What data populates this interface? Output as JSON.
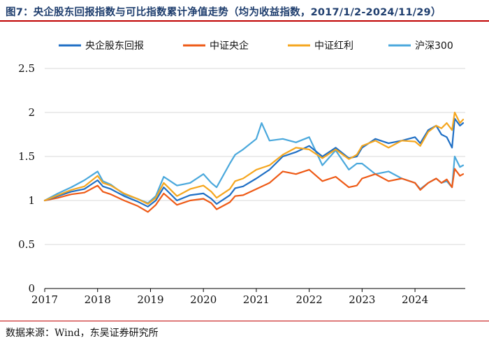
{
  "figure": {
    "title": "图7：央企股东回报指数与可比指数累计净值走势（均为收益指数，2017/1/2-2024/11/29）",
    "source": "数据来源：Wind，东吴证券研究所"
  },
  "colors": {
    "title": "#1f3e6e",
    "rule": "#c00000",
    "grid": "#d9d9d9",
    "axis": "#000000"
  },
  "chart_data": {
    "type": "line",
    "title": "央企股东回报指数与可比指数累计净值走势（均为收益指数，2017/1/2-2024/11/29）",
    "xlabel": "",
    "ylabel": "",
    "grid": true,
    "legend_position": "top",
    "xlim": [
      2017.0,
      2024.95
    ],
    "ylim": [
      0,
      2.5
    ],
    "yticks": [
      0,
      0.5,
      1,
      1.5,
      2,
      2.5
    ],
    "ytick_labels": [
      "0",
      "0.5",
      "1",
      "1.5",
      "2",
      "2.5"
    ],
    "xticks": [
      2017,
      2018,
      2019,
      2020,
      2021,
      2022,
      2023,
      2024
    ],
    "xtick_labels": [
      "2017",
      "2018",
      "2019",
      "2020",
      "2021",
      "2022",
      "2023",
      "2024"
    ],
    "series": [
      {
        "name": "央企股东回报",
        "color": "#1f6fc5",
        "x": [
          2017.0,
          2017.25,
          2017.5,
          2017.75,
          2018.0,
          2018.1,
          2018.25,
          2018.5,
          2018.75,
          2018.95,
          2019.1,
          2019.25,
          2019.5,
          2019.75,
          2020.0,
          2020.15,
          2020.25,
          2020.5,
          2020.6,
          2020.75,
          2021.0,
          2021.25,
          2021.5,
          2021.75,
          2022.0,
          2022.25,
          2022.5,
          2022.75,
          2022.9,
          2023.0,
          2023.25,
          2023.5,
          2023.75,
          2024.0,
          2024.1,
          2024.25,
          2024.4,
          2024.5,
          2024.6,
          2024.7,
          2024.75,
          2024.85,
          2024.91
        ],
        "values": [
          1.0,
          1.05,
          1.1,
          1.13,
          1.23,
          1.16,
          1.13,
          1.05,
          0.99,
          0.93,
          1.0,
          1.15,
          1.0,
          1.06,
          1.08,
          1.02,
          0.96,
          1.06,
          1.14,
          1.16,
          1.25,
          1.35,
          1.5,
          1.55,
          1.62,
          1.5,
          1.6,
          1.48,
          1.5,
          1.6,
          1.7,
          1.65,
          1.68,
          1.72,
          1.65,
          1.8,
          1.85,
          1.75,
          1.72,
          1.6,
          1.93,
          1.85,
          1.88
        ]
      },
      {
        "name": "中证央企",
        "color": "#ee5a16",
        "x": [
          2017.0,
          2017.25,
          2017.5,
          2017.75,
          2018.0,
          2018.1,
          2018.25,
          2018.5,
          2018.75,
          2018.95,
          2019.1,
          2019.25,
          2019.5,
          2019.75,
          2020.0,
          2020.15,
          2020.25,
          2020.5,
          2020.6,
          2020.75,
          2021.0,
          2021.25,
          2021.5,
          2021.75,
          2022.0,
          2022.25,
          2022.5,
          2022.75,
          2022.9,
          2023.0,
          2023.25,
          2023.5,
          2023.75,
          2024.0,
          2024.1,
          2024.25,
          2024.4,
          2024.5,
          2024.6,
          2024.7,
          2024.75,
          2024.85,
          2024.91
        ],
        "values": [
          1.0,
          1.03,
          1.07,
          1.09,
          1.17,
          1.1,
          1.07,
          1.0,
          0.94,
          0.87,
          0.95,
          1.08,
          0.95,
          1.0,
          1.02,
          0.97,
          0.9,
          0.98,
          1.05,
          1.06,
          1.13,
          1.2,
          1.33,
          1.3,
          1.35,
          1.22,
          1.27,
          1.15,
          1.17,
          1.25,
          1.3,
          1.22,
          1.25,
          1.2,
          1.12,
          1.2,
          1.25,
          1.2,
          1.24,
          1.15,
          1.36,
          1.28,
          1.3
        ]
      },
      {
        "name": "中证红利",
        "color": "#f5a61e",
        "x": [
          2017.0,
          2017.25,
          2017.5,
          2017.75,
          2018.0,
          2018.1,
          2018.25,
          2018.5,
          2018.75,
          2018.95,
          2019.1,
          2019.25,
          2019.5,
          2019.75,
          2020.0,
          2020.15,
          2020.25,
          2020.5,
          2020.6,
          2020.75,
          2021.0,
          2021.25,
          2021.5,
          2021.75,
          2022.0,
          2022.25,
          2022.5,
          2022.75,
          2022.9,
          2023.0,
          2023.25,
          2023.5,
          2023.75,
          2024.0,
          2024.1,
          2024.25,
          2024.4,
          2024.5,
          2024.6,
          2024.7,
          2024.75,
          2024.85,
          2024.91
        ],
        "values": [
          1.0,
          1.06,
          1.12,
          1.16,
          1.28,
          1.2,
          1.17,
          1.08,
          1.02,
          0.96,
          1.03,
          1.2,
          1.05,
          1.13,
          1.17,
          1.1,
          1.03,
          1.13,
          1.22,
          1.25,
          1.35,
          1.4,
          1.52,
          1.6,
          1.58,
          1.48,
          1.58,
          1.47,
          1.52,
          1.62,
          1.68,
          1.6,
          1.68,
          1.67,
          1.62,
          1.78,
          1.85,
          1.82,
          1.88,
          1.8,
          2.0,
          1.88,
          1.92
        ]
      },
      {
        "name": "沪深300",
        "color": "#4aa8dc",
        "x": [
          2017.0,
          2017.25,
          2017.5,
          2017.75,
          2018.0,
          2018.1,
          2018.25,
          2018.5,
          2018.75,
          2018.95,
          2019.1,
          2019.25,
          2019.5,
          2019.75,
          2020.0,
          2020.15,
          2020.25,
          2020.5,
          2020.6,
          2020.75,
          2021.0,
          2021.1,
          2021.25,
          2021.5,
          2021.75,
          2022.0,
          2022.25,
          2022.5,
          2022.75,
          2022.9,
          2023.0,
          2023.25,
          2023.5,
          2023.75,
          2024.0,
          2024.1,
          2024.25,
          2024.4,
          2024.5,
          2024.6,
          2024.7,
          2024.75,
          2024.85,
          2024.91
        ],
        "values": [
          1.0,
          1.08,
          1.15,
          1.23,
          1.33,
          1.22,
          1.18,
          1.07,
          1.02,
          0.97,
          1.05,
          1.27,
          1.17,
          1.2,
          1.3,
          1.2,
          1.15,
          1.42,
          1.52,
          1.58,
          1.7,
          1.88,
          1.68,
          1.7,
          1.66,
          1.72,
          1.4,
          1.57,
          1.35,
          1.42,
          1.42,
          1.3,
          1.33,
          1.25,
          1.2,
          1.13,
          1.2,
          1.25,
          1.2,
          1.22,
          1.15,
          1.5,
          1.38,
          1.4
        ]
      }
    ]
  }
}
